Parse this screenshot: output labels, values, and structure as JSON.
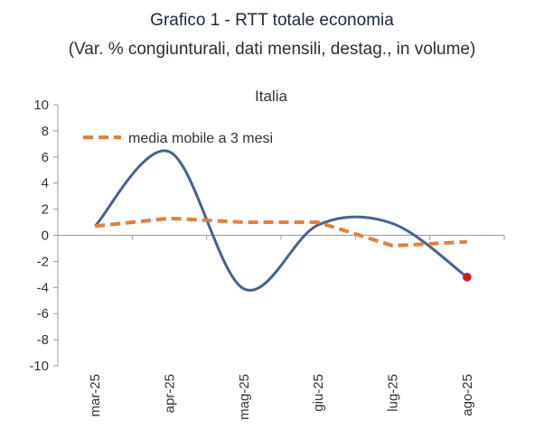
{
  "title": "Grafico 1 - RTT totale economia",
  "subtitle": "(Var. % congiunturali, dati mensili, destag., in volume)",
  "chart_data": {
    "type": "line",
    "title": "Italia",
    "categories": [
      "mar-25",
      "apr-25",
      "mag-25",
      "giu-25",
      "lug-25",
      "ago-25"
    ],
    "series": [
      {
        "name": "RTT totale economia",
        "values": [
          0.7,
          6.4,
          -4.1,
          0.8,
          0.9,
          -3.2
        ],
        "color": "#44648f",
        "style": "solid-smooth",
        "highlight_last": "#ff0000"
      },
      {
        "name": "media mobile a 3 mesi",
        "values": [
          0.7,
          1.3,
          1.0,
          1.0,
          -0.8,
          -0.5
        ],
        "color": "#ed7d31",
        "style": "dashed"
      }
    ],
    "legend": {
      "entries": [
        "media mobile a 3 mesi"
      ],
      "placement": "top-left"
    },
    "ylim": [
      -10,
      10
    ],
    "yticks": [
      10,
      8,
      6,
      4,
      2,
      0,
      -2,
      -4,
      -6,
      -8,
      -10
    ],
    "xlabel": "",
    "ylabel": "",
    "grid": false
  }
}
